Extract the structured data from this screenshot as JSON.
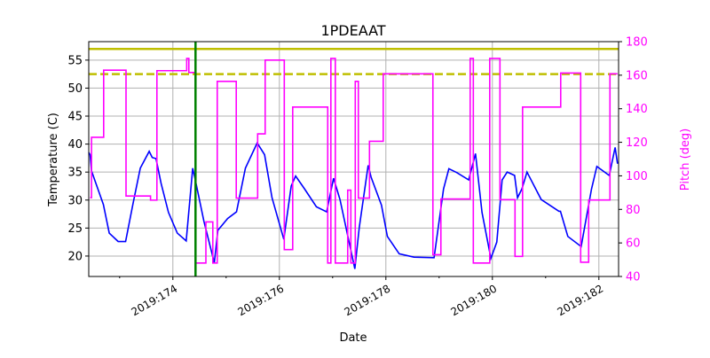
{
  "chart_data": {
    "type": "line",
    "title": "1PDEAAT",
    "xlabel": "Date",
    "ylabel": "Temperature (C)",
    "y2label": "Pitch (deg)",
    "xlim": [
      172.42,
      182.37
    ],
    "ylim": [
      16.35,
      58.3
    ],
    "y2lim": [
      40,
      180
    ],
    "grid": true,
    "x_ticks": [
      {
        "value": 174,
        "label": "2019:174"
      },
      {
        "value": 176,
        "label": "2019:176"
      },
      {
        "value": 178,
        "label": "2019:178"
      },
      {
        "value": 180,
        "label": "2019:180"
      },
      {
        "value": 182,
        "label": "2019:182"
      }
    ],
    "x_minor_ticks": [
      173,
      175,
      177,
      179,
      181
    ],
    "y_ticks": [
      20,
      25,
      30,
      35,
      40,
      45,
      50,
      55
    ],
    "y2_ticks": [
      40,
      60,
      80,
      100,
      120,
      140,
      160,
      180
    ],
    "colors": {
      "temperature": "#0000ff",
      "pitch": "#ff00ff",
      "limit": "#bfbf00",
      "marker": "#008000",
      "y2axis": "#ff00ff"
    },
    "hlines": [
      {
        "y": 57.0,
        "style": "solid"
      },
      {
        "y": 52.5,
        "style": "dashed"
      }
    ],
    "vline": {
      "x": 174.425
    },
    "temperature": [
      [
        172.42,
        38.5
      ],
      [
        172.445,
        38.1
      ],
      [
        172.472,
        35.2
      ],
      [
        172.695,
        29.2
      ],
      [
        172.805,
        24.1
      ],
      [
        172.972,
        22.6
      ],
      [
        173.112,
        22.6
      ],
      [
        173.25,
        29.3
      ],
      [
        173.388,
        35.7
      ],
      [
        173.555,
        38.7
      ],
      [
        173.612,
        37.6
      ],
      [
        173.683,
        37.4
      ],
      [
        173.778,
        33.0
      ],
      [
        173.917,
        27.8
      ],
      [
        174.083,
        24.1
      ],
      [
        174.25,
        22.7
      ],
      [
        174.372,
        35.7
      ],
      [
        174.445,
        32.5
      ],
      [
        174.583,
        26.2
      ],
      [
        174.778,
        18.8
      ],
      [
        174.845,
        24.6
      ],
      [
        175.028,
        26.7
      ],
      [
        175.195,
        27.9
      ],
      [
        175.362,
        35.7
      ],
      [
        175.583,
        40.2
      ],
      [
        175.722,
        38.1
      ],
      [
        175.862,
        30.4
      ],
      [
        176.083,
        23.0
      ],
      [
        176.222,
        32.5
      ],
      [
        176.305,
        34.3
      ],
      [
        176.472,
        32.0
      ],
      [
        176.695,
        28.8
      ],
      [
        176.888,
        27.9
      ],
      [
        177.017,
        33.9
      ],
      [
        177.138,
        30.1
      ],
      [
        177.417,
        17.7
      ],
      [
        177.5,
        25.1
      ],
      [
        177.667,
        36.2
      ],
      [
        177.722,
        34.1
      ],
      [
        177.917,
        29.1
      ],
      [
        178.028,
        23.5
      ],
      [
        178.25,
        20.4
      ],
      [
        178.528,
        19.8
      ],
      [
        178.905,
        19.7
      ],
      [
        179.083,
        32.0
      ],
      [
        179.183,
        35.6
      ],
      [
        179.333,
        34.9
      ],
      [
        179.555,
        33.6
      ],
      [
        179.683,
        38.3
      ],
      [
        179.805,
        27.8
      ],
      [
        179.972,
        19.6
      ],
      [
        180.083,
        22.5
      ],
      [
        180.183,
        33.6
      ],
      [
        180.278,
        35.0
      ],
      [
        180.417,
        34.4
      ],
      [
        180.472,
        30.4
      ],
      [
        180.555,
        32.0
      ],
      [
        180.65,
        35.0
      ],
      [
        180.917,
        30.1
      ],
      [
        181.25,
        28.0
      ],
      [
        181.278,
        28.0
      ],
      [
        181.417,
        23.5
      ],
      [
        181.667,
        21.7
      ],
      [
        181.862,
        32.0
      ],
      [
        181.962,
        36.0
      ],
      [
        182.195,
        34.4
      ],
      [
        182.305,
        39.4
      ],
      [
        182.35,
        36.5
      ]
    ],
    "pitch_steps": [
      [
        172.445,
        87
      ],
      [
        172.472,
        123
      ],
      [
        172.7,
        163
      ],
      [
        173.12,
        88
      ],
      [
        173.58,
        85.5
      ],
      [
        173.7,
        162.7
      ],
      [
        174.26,
        170
      ],
      [
        174.3,
        161.6
      ],
      [
        174.425,
        48
      ],
      [
        174.62,
        72.5
      ],
      [
        174.75,
        48
      ],
      [
        174.833,
        156.3
      ],
      [
        175.19,
        86.7
      ],
      [
        175.592,
        125
      ],
      [
        175.733,
        169
      ],
      [
        176.092,
        56
      ],
      [
        176.25,
        141
      ],
      [
        176.908,
        48
      ],
      [
        176.967,
        170
      ],
      [
        177.05,
        48
      ],
      [
        177.283,
        91.5
      ],
      [
        177.342,
        48
      ],
      [
        177.425,
        156.3
      ],
      [
        177.483,
        86.7
      ],
      [
        177.692,
        120.6
      ],
      [
        177.95,
        160.8
      ],
      [
        178.883,
        53
      ],
      [
        179.033,
        86.2
      ],
      [
        179.583,
        170
      ],
      [
        179.642,
        48
      ],
      [
        179.95,
        170
      ],
      [
        180.142,
        85.8
      ],
      [
        180.425,
        52
      ],
      [
        180.567,
        141
      ],
      [
        181.283,
        161.3
      ],
      [
        181.658,
        48.5
      ],
      [
        181.808,
        85.6
      ],
      [
        182.208,
        160.8
      ]
    ],
    "pitch_end": 182.35
  }
}
